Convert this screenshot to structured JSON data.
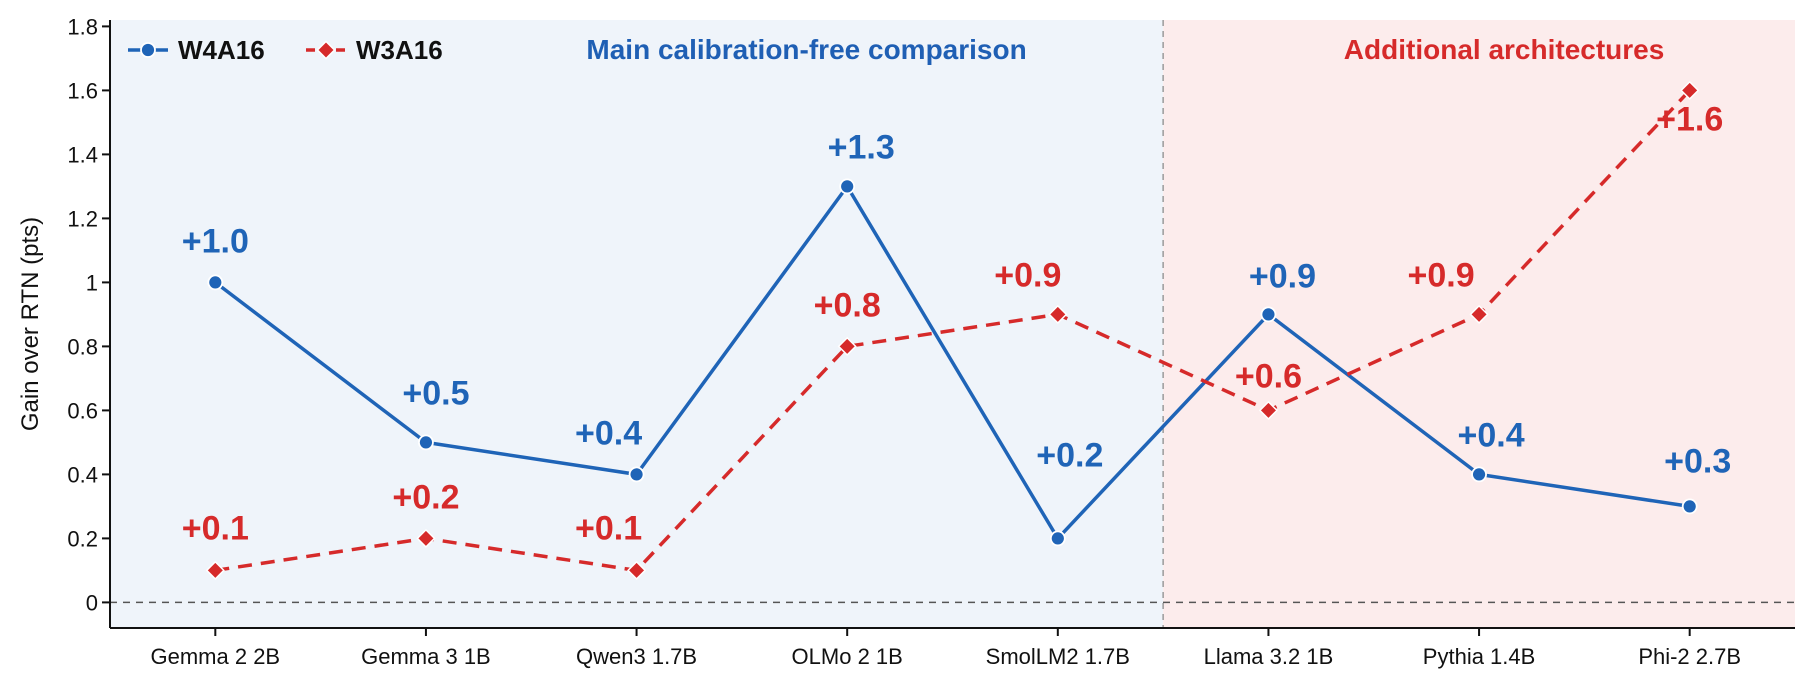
{
  "chart_data": {
    "type": "line",
    "title": "",
    "xlabel": "",
    "ylabel": "Gain over RTN (pts)",
    "ylim": [
      -0.08,
      1.82
    ],
    "yticks": [
      0,
      0.2,
      0.4,
      0.6,
      0.8,
      1,
      1.2,
      1.4,
      1.6,
      1.8
    ],
    "ytick_labels": [
      "0",
      "0.2",
      "0.4",
      "0.6",
      "0.8",
      "1",
      "1.2",
      "1.4",
      "1.6",
      "1.8"
    ],
    "grid": false,
    "legend_position": "top-left",
    "reference_line": 0,
    "categories": [
      "Gemma 2 2B",
      "Gemma 3 1B",
      "Qwen3 1.7B",
      "OLMo 2 1B",
      "SmolLM2 1.7B",
      "Llama 3.2 1B",
      "Pythia 1.4B",
      "Phi-2 2.7B"
    ],
    "regions": [
      {
        "label": "Main calibration-free comparison",
        "from_index": 0,
        "to_index": 4,
        "color": "#1f5fb4",
        "fill": "#eff4fa"
      },
      {
        "label": "Additional architectures",
        "from_index": 5,
        "to_index": 7,
        "color": "#d62a2a",
        "fill": "#fcecec"
      }
    ],
    "series": [
      {
        "name": "W4A16",
        "color": "#1f64b7",
        "marker": "circle",
        "line": "solid",
        "values": [
          1.0,
          0.5,
          0.4,
          1.3,
          0.2,
          0.9,
          0.4,
          0.3
        ],
        "labels": [
          "+1.0",
          "+0.5",
          "+0.4",
          "+1.3",
          "+0.2",
          "+0.9",
          "+0.4",
          "+0.3"
        ]
      },
      {
        "name": "W3A16",
        "color": "#d62a2a",
        "marker": "diamond",
        "line": "dashed",
        "values": [
          0.1,
          0.2,
          0.1,
          0.8,
          0.9,
          0.6,
          0.9,
          1.6
        ],
        "labels": [
          "+0.1",
          "+0.2",
          "+0.1",
          "+0.8",
          "+0.9",
          "+0.6",
          "+0.9",
          "+1.6"
        ]
      }
    ]
  }
}
